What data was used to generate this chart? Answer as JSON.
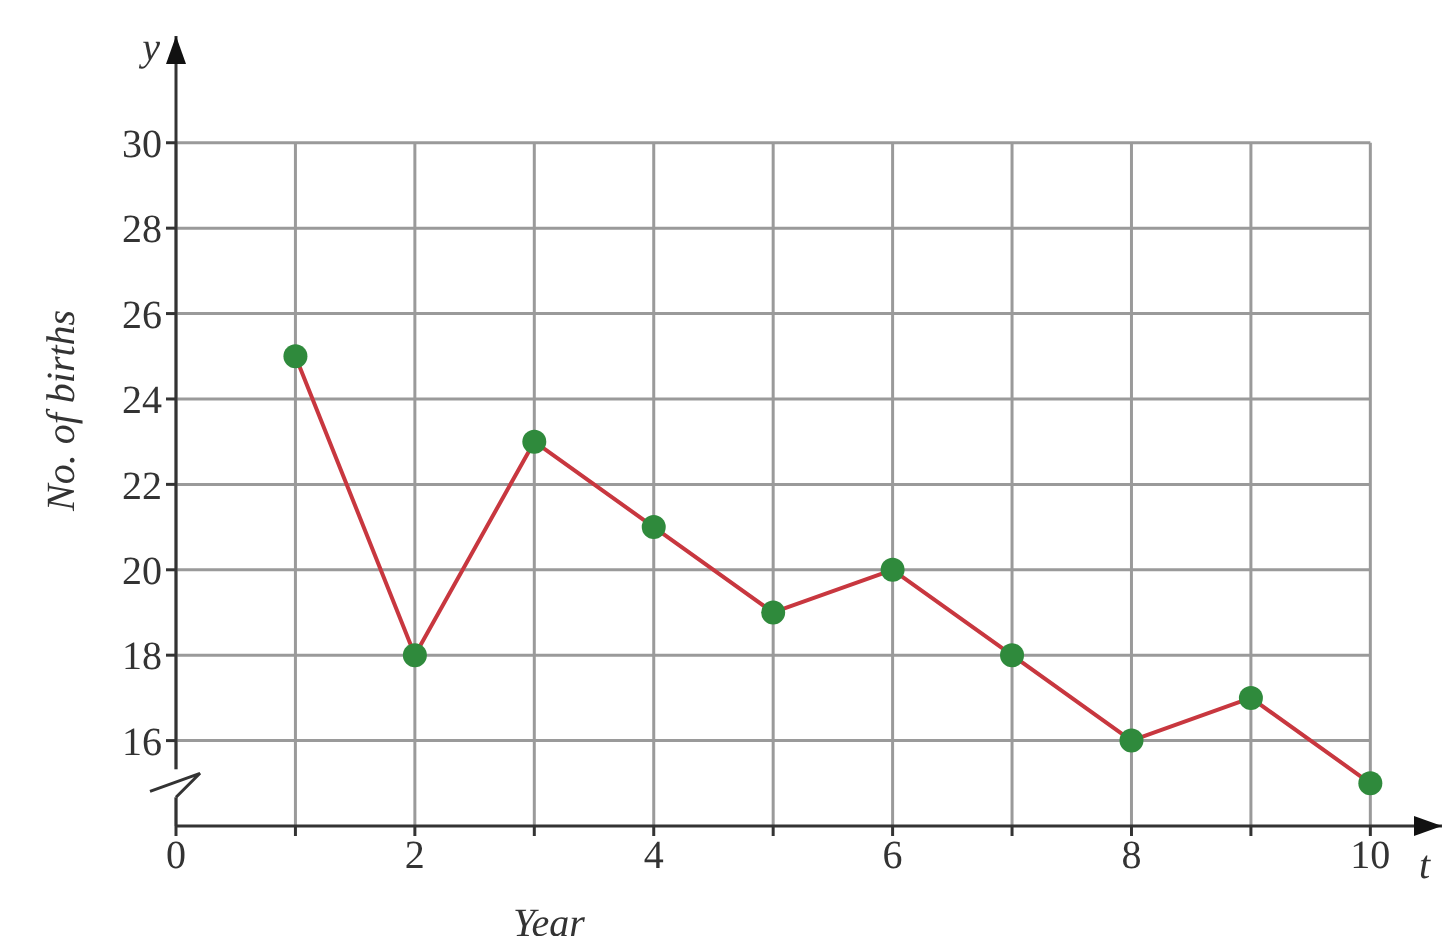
{
  "chart_data": {
    "type": "line",
    "xlabel": "Year",
    "ylabel": "No. of births",
    "annotations": [
      "y",
      "t"
    ],
    "x": [
      1,
      2,
      3,
      4,
      5,
      6,
      7,
      8,
      9,
      10
    ],
    "series": [
      {
        "color": "#c8373f",
        "colors": [
          "#2f8a3c",
          "#2f8a3c",
          "#2f8a3c",
          "#2f8a3c",
          "#2f8a3c",
          "#2f8a3c",
          "#2f8a3c",
          "#2f8a3c",
          "#2f8a3c",
          "#2f8a3c"
        ],
        "values": [
          25,
          18,
          23,
          21,
          19,
          20,
          18,
          16,
          17,
          15
        ]
      }
    ],
    "xlim": [
      0,
      10.6
    ],
    "xticks": [
      0,
      {
        "value": 1,
        "label": null
      },
      2,
      {
        "value": 3,
        "label": null
      },
      4,
      {
        "value": 5,
        "label": null
      },
      6,
      {
        "value": 7,
        "label": null
      },
      8,
      {
        "value": 9,
        "label": null
      },
      10
    ],
    "ylim": [
      14,
      32.5
    ],
    "yticks": [
      16,
      18,
      20,
      22,
      24,
      26,
      28,
      30
    ],
    "grid": true,
    "marker": "circle",
    "line_style": "solid"
  }
}
